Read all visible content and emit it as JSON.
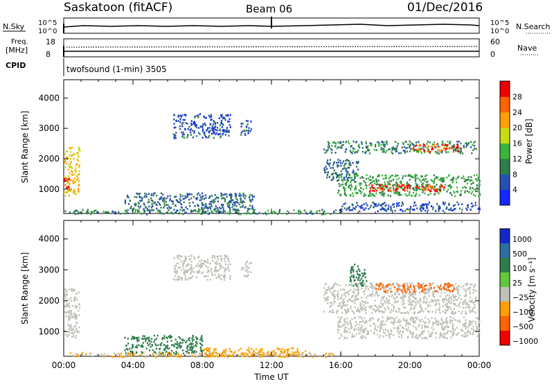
{
  "header": {
    "station": "Saskatoon (fitACF)",
    "beam": "Beam 06",
    "date": "01/Dec/2016"
  },
  "params": {
    "nsky_label": "N.Sky",
    "nsearch_label": "N.Search",
    "freq_label_1": "Freq.",
    "freq_label_2": "[MHz]",
    "nave_label": "Nave",
    "cpid_label": "CPID",
    "cpid_value": "twofsound (1-min) 3505",
    "count_ticks_left": [
      "10^5",
      "10^0"
    ],
    "count_ticks_right": [
      "10^5",
      "10^0"
    ],
    "freq_ticks": [
      "18",
      "8"
    ],
    "nave_ticks": [
      "60",
      "0"
    ]
  },
  "colors": {
    "power_scale": [
      "#1428ff",
      "#2850b4",
      "#2e7d4a",
      "#3cb43c",
      "#c8dc14",
      "#ffa000",
      "#ff6400",
      "#f00000"
    ],
    "velocity_scale": [
      "#1428c8",
      "#2e6ea0",
      "#2e7d4a",
      "#64c83c",
      "#c0c0b8",
      "#ffa000",
      "#ff6400",
      "#f00000"
    ]
  },
  "chart_data": [
    {
      "type": "heatmap",
      "name": "power",
      "ylabel": "Slant Range [km]",
      "xlim": [
        0,
        24
      ],
      "ylim": [
        200,
        4600
      ],
      "yticks": [
        "1000",
        "2000",
        "3000",
        "4000"
      ],
      "colorbar_label": "Power [dB]",
      "colorbar_ticks": [
        "4",
        "8",
        "12",
        "16",
        "20",
        "24",
        "28"
      ],
      "colorbar_range": [
        0,
        32
      ],
      "echo_regions": [
        {
          "t0": 0.0,
          "t1": 0.9,
          "r0": 800,
          "r1": 2400,
          "v": 20
        },
        {
          "t0": 0.0,
          "t1": 0.3,
          "r0": 1000,
          "r1": 1400,
          "v": 28
        },
        {
          "t0": 6.3,
          "t1": 9.6,
          "r0": 2700,
          "r1": 3500,
          "v": 6
        },
        {
          "t0": 10.2,
          "t1": 10.8,
          "r0": 2800,
          "r1": 3300,
          "v": 6
        },
        {
          "t0": 3.5,
          "t1": 11.0,
          "r0": 300,
          "r1": 900,
          "v": 8
        },
        {
          "t0": 0.0,
          "t1": 16.0,
          "r0": 200,
          "r1": 350,
          "v": 10
        },
        {
          "t0": 15.0,
          "t1": 23.8,
          "r0": 2200,
          "r1": 2600,
          "v": 10
        },
        {
          "t0": 20.0,
          "t1": 23.0,
          "r0": 2250,
          "r1": 2500,
          "v": 26
        },
        {
          "t0": 15.8,
          "t1": 24.0,
          "r0": 800,
          "r1": 1500,
          "v": 12
        },
        {
          "t0": 17.5,
          "t1": 22.0,
          "r0": 950,
          "r1": 1200,
          "v": 28
        },
        {
          "t0": 15.0,
          "t1": 17.0,
          "r0": 1300,
          "r1": 2000,
          "v": 8
        },
        {
          "t0": 16.0,
          "t1": 24.0,
          "r0": 300,
          "r1": 600,
          "v": 6
        }
      ]
    },
    {
      "type": "heatmap",
      "name": "velocity",
      "ylabel": "Slant Range [km]",
      "xlabel": "Time UT",
      "xlim": [
        0,
        24
      ],
      "ylim": [
        200,
        4600
      ],
      "yticks": [
        "1000",
        "2000",
        "3000",
        "4000"
      ],
      "xticks": [
        "00:00",
        "04:00",
        "08:00",
        "12:00",
        "16:00",
        "20:00",
        "00:00"
      ],
      "colorbar_label": "Velocity [m s⁻¹]",
      "colorbar_ticks": [
        "1000",
        "500",
        "100",
        "25",
        "−25",
        "−100",
        "−500",
        "−1000"
      ],
      "echo_regions": [
        {
          "t0": 0.0,
          "t1": 0.9,
          "r0": 800,
          "r1": 2400,
          "v": 0
        },
        {
          "t0": 6.3,
          "t1": 9.6,
          "r0": 2700,
          "r1": 3500,
          "v": 0
        },
        {
          "t0": 10.2,
          "t1": 10.8,
          "r0": 2800,
          "r1": 3300,
          "v": 0
        },
        {
          "t0": 3.5,
          "t1": 8.0,
          "r0": 300,
          "r1": 900,
          "v": 120
        },
        {
          "t0": 8.0,
          "t1": 14.0,
          "r0": 200,
          "r1": 500,
          "v": -60
        },
        {
          "t0": 15.0,
          "t1": 23.8,
          "r0": 1600,
          "r1": 2600,
          "v": 0
        },
        {
          "t0": 18.0,
          "t1": 22.5,
          "r0": 2300,
          "r1": 2600,
          "v": -150
        },
        {
          "t0": 16.5,
          "t1": 17.5,
          "r0": 2500,
          "r1": 3200,
          "v": 200
        },
        {
          "t0": 15.8,
          "t1": 24.0,
          "r0": 800,
          "r1": 1500,
          "v": 0
        },
        {
          "t0": 0.0,
          "t1": 16.0,
          "r0": 200,
          "r1": 350,
          "v": -30
        }
      ]
    }
  ]
}
